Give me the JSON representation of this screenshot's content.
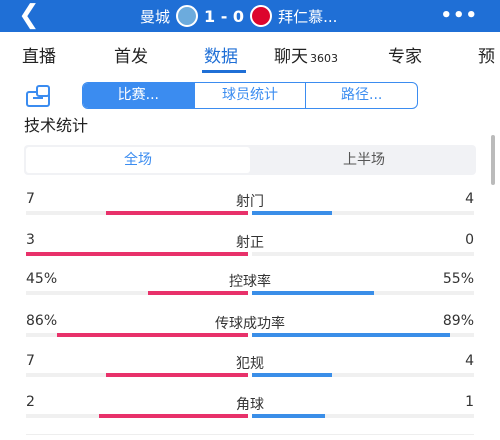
{
  "header": {
    "back_icon": "chevron-left-icon",
    "home_team": "曼城",
    "score": "1 - 0",
    "away_team": "拜仁慕...",
    "more_icon": "more-dots-icon",
    "color": "#1f6fd6"
  },
  "tabs": [
    {
      "label": "直播",
      "count": ""
    },
    {
      "label": "首发",
      "count": ""
    },
    {
      "label": "数据",
      "count": "",
      "active": true
    },
    {
      "label": "聊天",
      "count": "3603"
    },
    {
      "label": "专家",
      "count": ""
    },
    {
      "label": "预",
      "count": ""
    }
  ],
  "segments": [
    "比赛...",
    "球员统计",
    "路径..."
  ],
  "section_title": "技术统计",
  "half_toggle": [
    "全场",
    "上半场"
  ],
  "stats": [
    {
      "name": "射门",
      "left": "7",
      "right": "4",
      "left_share": 0.64,
      "right_share": 0.36
    },
    {
      "name": "射正",
      "left": "3",
      "right": "0",
      "left_share": 1.0,
      "right_share": 0.0
    },
    {
      "name": "控球率",
      "left": "45%",
      "right": "55%",
      "left_share": 0.45,
      "right_share": 0.55
    },
    {
      "name": "传球成功率",
      "left": "86%",
      "right": "89%",
      "left_share": 0.86,
      "right_share": 0.89
    },
    {
      "name": "犯规",
      "left": "7",
      "right": "4",
      "left_share": 0.64,
      "right_share": 0.36
    },
    {
      "name": "角球",
      "left": "2",
      "right": "1",
      "left_share": 0.67,
      "right_share": 0.33
    }
  ],
  "colors": {
    "home": "#e8316a",
    "away": "#3a8ee8",
    "accent": "#3b8cf0"
  }
}
